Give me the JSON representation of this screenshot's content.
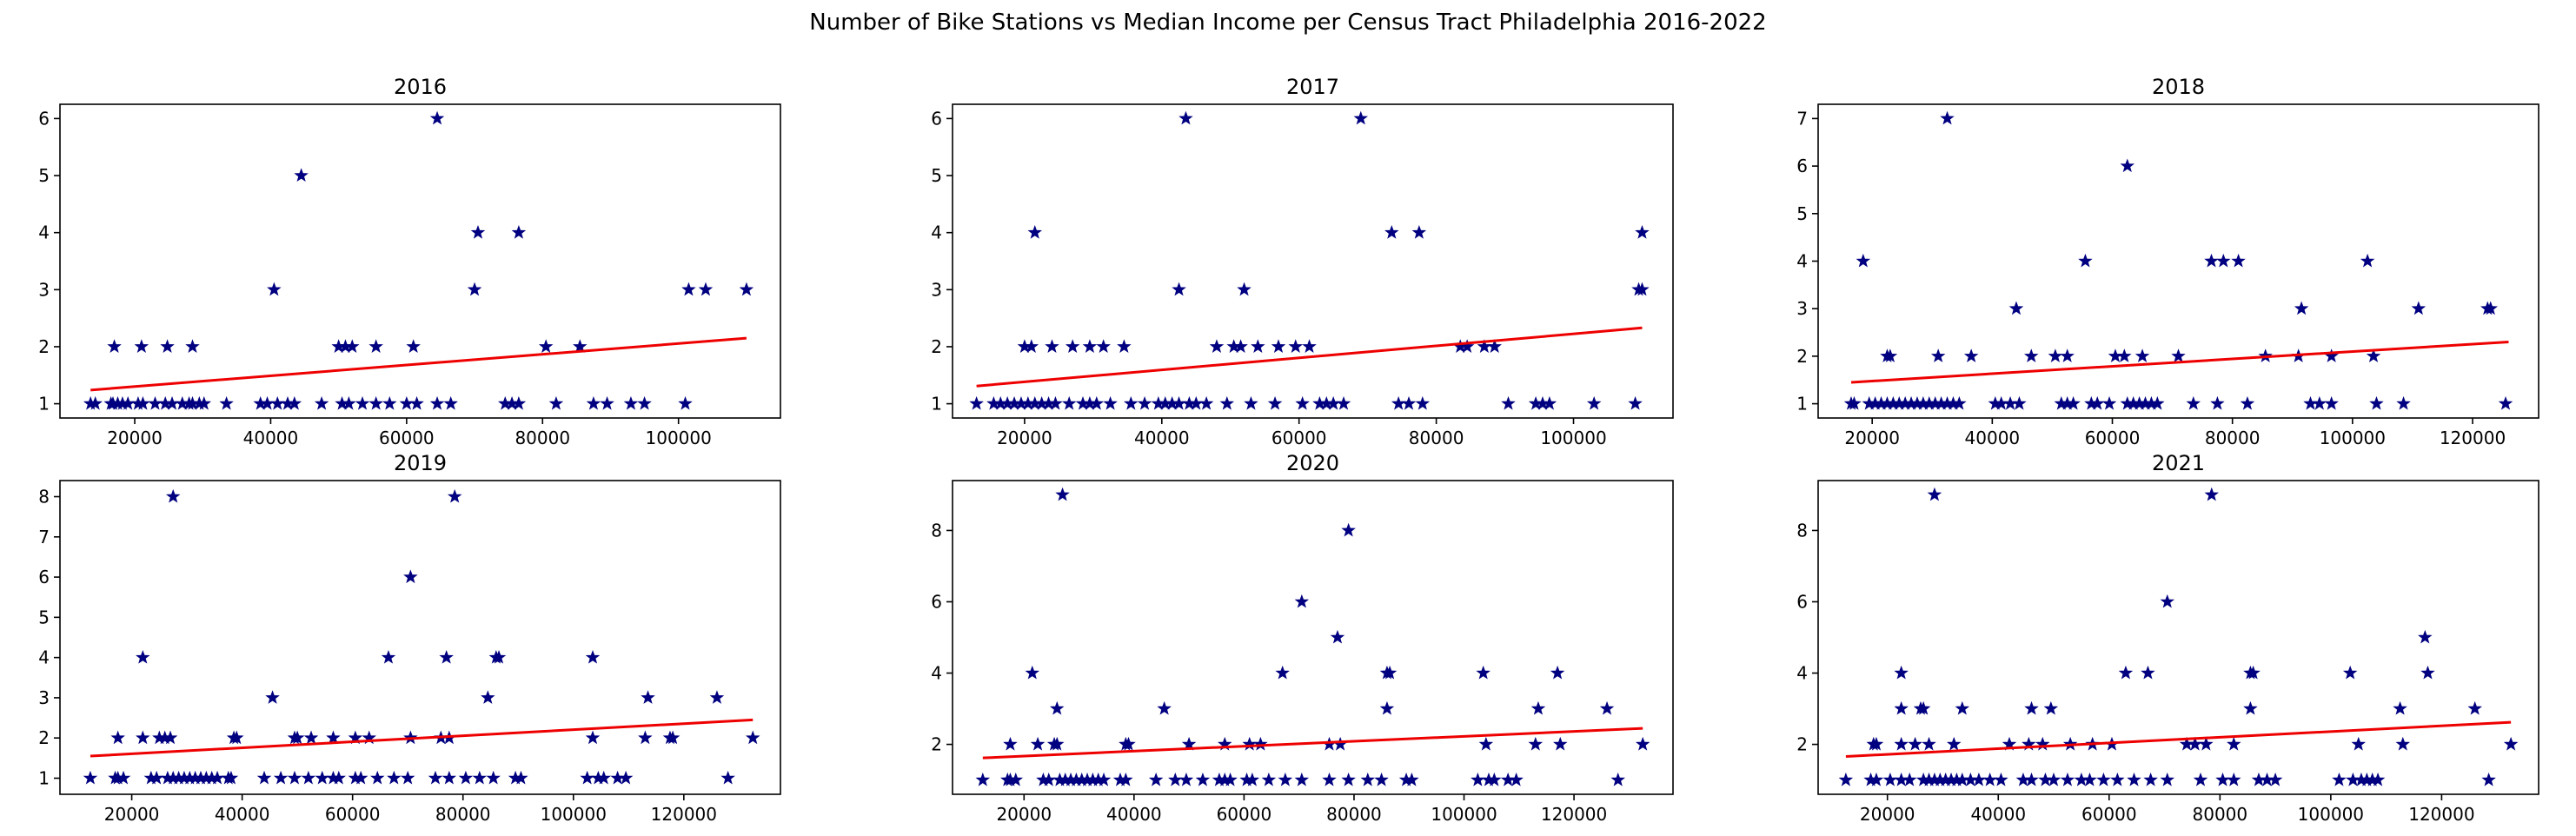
{
  "suptitle": "Number of Bike Stations vs Median Income per Census Tract Philadelphia 2016-2022",
  "colors": {
    "marker": "#000080",
    "trend": "#ee0000",
    "axes": "#000000"
  },
  "chart_data": [
    {
      "type": "scatter",
      "title": "2016",
      "xlabel": "",
      "ylabel": "",
      "xlim": [
        9000,
        115000
      ],
      "ylim": [
        0.75,
        6.25
      ],
      "xticks": [
        20000,
        40000,
        60000,
        80000,
        100000
      ],
      "yticks": [
        1,
        2,
        3,
        4,
        5,
        6
      ],
      "marker": "star",
      "x": [
        13500,
        14200,
        16500,
        16800,
        17500,
        18200,
        19000,
        20500,
        21200,
        23000,
        24500,
        25500,
        27000,
        28000,
        28500,
        29500,
        30200,
        33500,
        17000,
        21000,
        24800,
        28500,
        38500,
        39500,
        41000,
        42500,
        43500,
        47500,
        50500,
        51500,
        53500,
        55500,
        57500,
        60000,
        61500,
        64500,
        66500,
        74500,
        75500,
        76500,
        82000,
        87500,
        89500,
        93000,
        95000,
        101000,
        40500,
        50000,
        51000,
        52000,
        55500,
        61000,
        70000,
        76500,
        44500,
        64500,
        80500,
        85500,
        70500,
        101500,
        104000,
        110000
      ],
      "y": [
        1,
        1,
        1,
        1,
        1,
        1,
        1,
        1,
        1,
        1,
        1,
        1,
        1,
        1,
        1,
        1,
        1,
        1,
        2,
        2,
        2,
        2,
        1,
        1,
        1,
        1,
        1,
        1,
        1,
        1,
        1,
        1,
        1,
        1,
        1,
        1,
        1,
        1,
        1,
        1,
        1,
        1,
        1,
        1,
        1,
        1,
        3,
        2,
        2,
        2,
        2,
        2,
        3,
        4,
        5,
        6,
        2,
        2,
        4,
        3,
        3,
        3
      ],
      "trend": {
        "x": [
          13500,
          110000
        ],
        "y": [
          1.24,
          2.15
        ]
      }
    },
    {
      "type": "scatter",
      "title": "2017",
      "xlabel": "",
      "ylabel": "",
      "xlim": [
        9500,
        114500
      ],
      "ylim": [
        0.75,
        6.25
      ],
      "xticks": [
        20000,
        40000,
        60000,
        80000,
        100000
      ],
      "yticks": [
        1,
        2,
        3,
        4,
        5,
        6
      ],
      "marker": "star",
      "x": [
        13000,
        15500,
        16500,
        17500,
        18500,
        19500,
        20500,
        21500,
        22500,
        23500,
        24500,
        26500,
        28500,
        29500,
        30500,
        32500,
        35500,
        37500,
        39500,
        40500,
        41500,
        42500,
        44000,
        45000,
        46500,
        49500,
        53000,
        56500,
        60500,
        63000,
        64000,
        65000,
        66500,
        74500,
        76000,
        78000,
        90500,
        94500,
        95500,
        96500,
        103000,
        109000,
        20000,
        21000,
        24000,
        27000,
        29500,
        31500,
        34500,
        48000,
        50500,
        51500,
        54000,
        57000,
        59500,
        61500,
        83500,
        84500,
        87000,
        88500,
        21500,
        42500,
        52000,
        109500,
        110000,
        73500,
        77500,
        110000,
        43500,
        69000
      ],
      "y": [
        1,
        1,
        1,
        1,
        1,
        1,
        1,
        1,
        1,
        1,
        1,
        1,
        1,
        1,
        1,
        1,
        1,
        1,
        1,
        1,
        1,
        1,
        1,
        1,
        1,
        1,
        1,
        1,
        1,
        1,
        1,
        1,
        1,
        1,
        1,
        1,
        1,
        1,
        1,
        1,
        1,
        1,
        2,
        2,
        2,
        2,
        2,
        2,
        2,
        2,
        2,
        2,
        2,
        2,
        2,
        2,
        2,
        2,
        2,
        2,
        4,
        3,
        3,
        3,
        3,
        4,
        4,
        4,
        6,
        6
      ],
      "trend": {
        "x": [
          13000,
          110000
        ],
        "y": [
          1.31,
          2.33
        ]
      }
    },
    {
      "type": "scatter",
      "title": "2018",
      "xlabel": "",
      "ylabel": "",
      "xlim": [
        11000,
        131000
      ],
      "ylim": [
        0.7,
        7.3
      ],
      "xticks": [
        20000,
        40000,
        60000,
        80000,
        100000,
        120000
      ],
      "yticks": [
        1,
        2,
        3,
        4,
        5,
        6,
        7
      ],
      "marker": "star",
      "x": [
        16500,
        17000,
        19500,
        20500,
        21500,
        22500,
        23500,
        24500,
        25500,
        26500,
        27500,
        28500,
        29500,
        30500,
        31500,
        32500,
        33500,
        34500,
        40500,
        41500,
        43000,
        44500,
        51500,
        52500,
        53500,
        56500,
        57500,
        59500,
        62500,
        63500,
        64500,
        65500,
        66500,
        67500,
        73500,
        77500,
        82500,
        93000,
        94500,
        96500,
        104000,
        108500,
        125500,
        22500,
        23000,
        31000,
        36500,
        46500,
        50500,
        52500,
        60500,
        62000,
        65000,
        71000,
        85500,
        91000,
        96500,
        103500,
        44000,
        91500,
        111000,
        122500,
        123000,
        18500,
        55500,
        76500,
        78500,
        81000,
        102500,
        62500,
        32500
      ],
      "y": [
        1,
        1,
        1,
        1,
        1,
        1,
        1,
        1,
        1,
        1,
        1,
        1,
        1,
        1,
        1,
        1,
        1,
        1,
        1,
        1,
        1,
        1,
        1,
        1,
        1,
        1,
        1,
        1,
        1,
        1,
        1,
        1,
        1,
        1,
        1,
        1,
        1,
        1,
        1,
        1,
        1,
        1,
        1,
        2,
        2,
        2,
        2,
        2,
        2,
        2,
        2,
        2,
        2,
        2,
        2,
        2,
        2,
        2,
        3,
        3,
        3,
        3,
        3,
        4,
        4,
        4,
        4,
        4,
        4,
        6,
        7
      ],
      "trend": {
        "x": [
          16500,
          126000
        ],
        "y": [
          1.45,
          2.3
        ]
      }
    },
    {
      "type": "scatter",
      "title": "2019",
      "xlabel": "",
      "ylabel": "",
      "xlim": [
        7000,
        137500
      ],
      "ylim": [
        0.6,
        8.4
      ],
      "xticks": [
        20000,
        40000,
        60000,
        80000,
        100000,
        120000
      ],
      "yticks": [
        1,
        2,
        3,
        4,
        5,
        6,
        7,
        8
      ],
      "marker": "star",
      "x": [
        12500,
        17000,
        17500,
        18500,
        23500,
        24500,
        26500,
        27500,
        28500,
        29500,
        30500,
        31500,
        32500,
        33500,
        34500,
        35500,
        37500,
        38000,
        44000,
        47000,
        49500,
        52000,
        54500,
        56500,
        57500,
        60500,
        61500,
        64500,
        67500,
        70000,
        75000,
        77500,
        80500,
        83000,
        85500,
        89500,
        90500,
        102500,
        104500,
        105500,
        108000,
        109500,
        128000,
        17500,
        22000,
        25000,
        26000,
        27000,
        38500,
        39000,
        49500,
        50000,
        52500,
        56500,
        60500,
        63000,
        70500,
        76000,
        77500,
        103500,
        113000,
        117500,
        118000,
        132500,
        45500,
        84500,
        113500,
        126000,
        22000,
        66500,
        77000,
        86000,
        86500,
        103500,
        70500,
        27500,
        78500
      ],
      "y": [
        1,
        1,
        1,
        1,
        1,
        1,
        1,
        1,
        1,
        1,
        1,
        1,
        1,
        1,
        1,
        1,
        1,
        1,
        1,
        1,
        1,
        1,
        1,
        1,
        1,
        1,
        1,
        1,
        1,
        1,
        1,
        1,
        1,
        1,
        1,
        1,
        1,
        1,
        1,
        1,
        1,
        1,
        1,
        2,
        2,
        2,
        2,
        2,
        2,
        2,
        2,
        2,
        2,
        2,
        2,
        2,
        2,
        2,
        2,
        2,
        2,
        2,
        2,
        2,
        3,
        3,
        3,
        3,
        4,
        4,
        4,
        4,
        4,
        4,
        6,
        8,
        8
      ],
      "trend": {
        "x": [
          12500,
          132500
        ],
        "y": [
          1.55,
          2.45
        ]
      }
    },
    {
      "type": "scatter",
      "title": "2020",
      "xlabel": "",
      "ylabel": "",
      "xlim": [
        7000,
        138000
      ],
      "ylim": [
        0.6,
        9.4
      ],
      "xticks": [
        20000,
        40000,
        60000,
        80000,
        100000,
        120000
      ],
      "yticks": [
        2,
        4,
        6,
        8
      ],
      "marker": "star",
      "x": [
        12500,
        17000,
        17500,
        18500,
        23500,
        24500,
        26500,
        27500,
        28500,
        29500,
        30500,
        31500,
        32500,
        33500,
        34500,
        37500,
        38500,
        44000,
        47500,
        49500,
        52500,
        55500,
        56500,
        57500,
        60500,
        61500,
        64500,
        67500,
        70500,
        75500,
        79000,
        82500,
        85000,
        89500,
        90500,
        102500,
        104500,
        105500,
        108000,
        109500,
        128000,
        17500,
        22500,
        25500,
        26000,
        38500,
        39000,
        50000,
        56500,
        61000,
        63000,
        75500,
        77500,
        104000,
        113000,
        117500,
        132500,
        26000,
        45500,
        86000,
        113500,
        126000,
        21500,
        67000,
        86000,
        86500,
        103500,
        117000,
        70500,
        77000,
        79000,
        27000
      ],
      "y": [
        1,
        1,
        1,
        1,
        1,
        1,
        1,
        1,
        1,
        1,
        1,
        1,
        1,
        1,
        1,
        1,
        1,
        1,
        1,
        1,
        1,
        1,
        1,
        1,
        1,
        1,
        1,
        1,
        1,
        1,
        1,
        1,
        1,
        1,
        1,
        1,
        1,
        1,
        1,
        1,
        1,
        2,
        2,
        2,
        2,
        2,
        2,
        2,
        2,
        2,
        2,
        2,
        2,
        2,
        2,
        2,
        2,
        3,
        3,
        3,
        3,
        3,
        4,
        4,
        4,
        4,
        4,
        4,
        6,
        5,
        8,
        9
      ],
      "trend": {
        "x": [
          12500,
          132500
        ],
        "y": [
          1.62,
          2.45
        ]
      }
    },
    {
      "type": "scatter",
      "title": "2021",
      "xlabel": "",
      "ylabel": "",
      "xlim": [
        7500,
        137500
      ],
      "ylim": [
        0.6,
        9.4
      ],
      "xticks": [
        20000,
        40000,
        60000,
        80000,
        100000,
        120000
      ],
      "yticks": [
        2,
        4,
        6,
        8
      ],
      "marker": "star",
      "x": [
        12500,
        17000,
        18000,
        20500,
        22500,
        24000,
        26500,
        27500,
        28500,
        29500,
        30500,
        31500,
        32500,
        33500,
        35000,
        36500,
        38500,
        40500,
        44500,
        46000,
        48500,
        50000,
        52500,
        55000,
        56500,
        59000,
        61500,
        64500,
        67500,
        70500,
        76500,
        80500,
        82500,
        87000,
        88500,
        90000,
        101500,
        104000,
        105500,
        106500,
        107500,
        108500,
        128500,
        17500,
        18000,
        22500,
        25000,
        27500,
        32000,
        42000,
        45500,
        48000,
        53000,
        57000,
        60500,
        74000,
        75500,
        77500,
        82500,
        105000,
        113000,
        132500,
        22500,
        26000,
        26500,
        33500,
        46000,
        49500,
        85500,
        112500,
        126000,
        22500,
        63000,
        67000,
        85500,
        86000,
        103500,
        117500,
        117000,
        70500,
        28500,
        78500
      ],
      "y": [
        1,
        1,
        1,
        1,
        1,
        1,
        1,
        1,
        1,
        1,
        1,
        1,
        1,
        1,
        1,
        1,
        1,
        1,
        1,
        1,
        1,
        1,
        1,
        1,
        1,
        1,
        1,
        1,
        1,
        1,
        1,
        1,
        1,
        1,
        1,
        1,
        1,
        1,
        1,
        1,
        1,
        1,
        1,
        2,
        2,
        2,
        2,
        2,
        2,
        2,
        2,
        2,
        2,
        2,
        2,
        2,
        2,
        2,
        2,
        2,
        2,
        2,
        3,
        3,
        3,
        3,
        3,
        3,
        3,
        3,
        3,
        4,
        4,
        4,
        4,
        4,
        4,
        4,
        5,
        6,
        9,
        9
      ],
      "trend": {
        "x": [
          12500,
          132500
        ],
        "y": [
          1.66,
          2.62
        ]
      }
    }
  ]
}
